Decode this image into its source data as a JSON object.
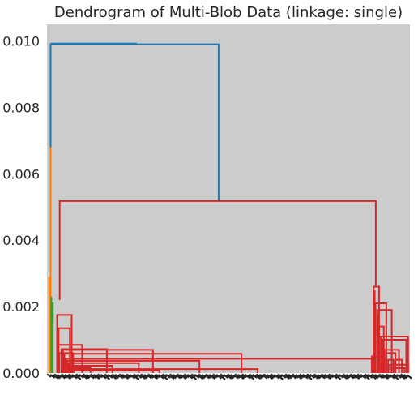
{
  "chart_data": {
    "type": "dendrogram",
    "title": "Dendrogram of Multi-Blob Data (linkage: single)",
    "linkage": "single",
    "ylim": [
      0,
      0.0105
    ],
    "yticks": [
      "0.000",
      "0.002",
      "0.004",
      "0.006",
      "0.008",
      "0.010"
    ],
    "ytick_values": [
      0,
      0.002,
      0.004,
      0.006,
      0.008,
      0.01
    ],
    "grid": false,
    "plot_background": "#cccccc",
    "colors": {
      "blue": "#1f77b4",
      "orange": "#ff7f0e",
      "green": "#2ca02c",
      "red": "#d62728"
    },
    "root_merge_height": 0.0099,
    "red_cluster_merge_height": 0.00518,
    "orange_cluster_max_height": 0.0068,
    "green_cluster_max_height": 0.0023,
    "leaf_labels_legible": false
  }
}
